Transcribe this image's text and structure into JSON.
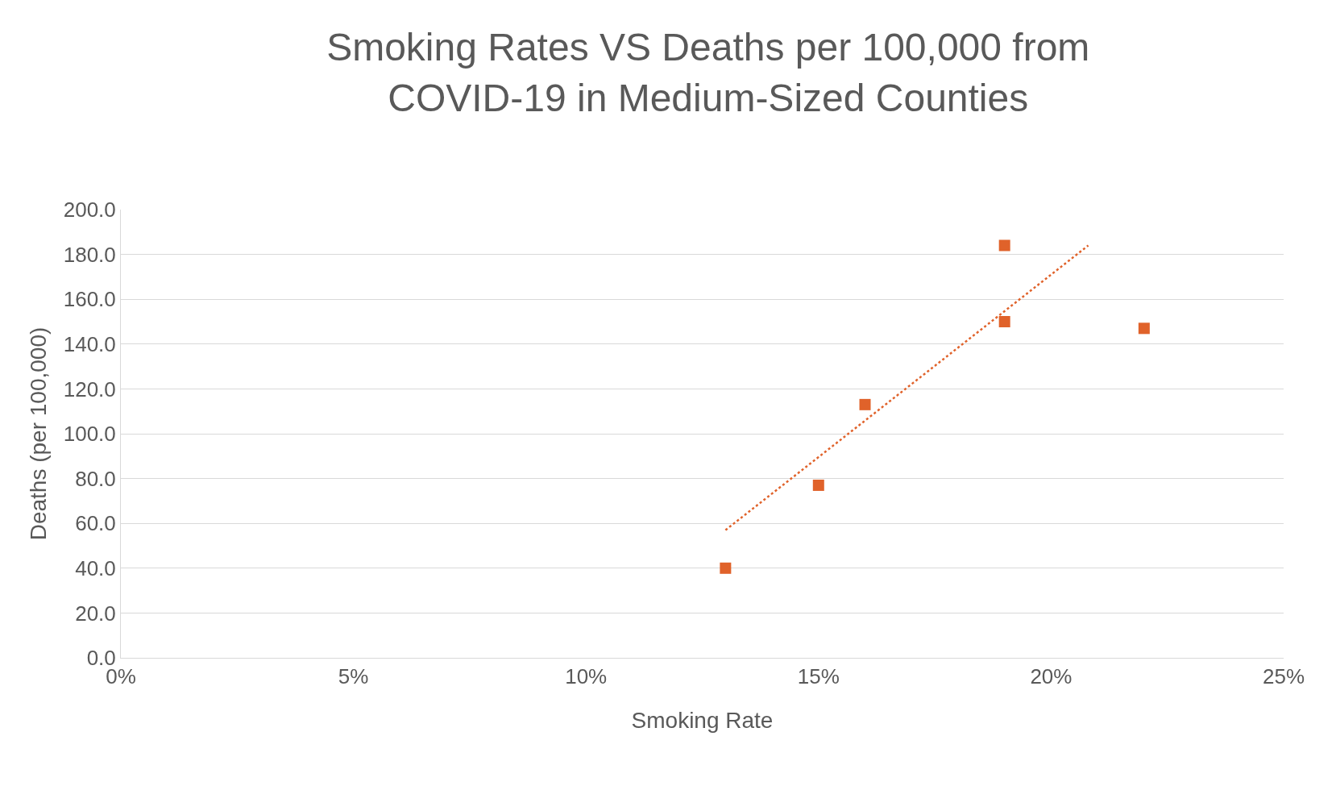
{
  "chart_data": {
    "type": "scatter",
    "title": "Smoking Rates VS Deaths per 100,000 from\nCOVID-19 in Medium-Sized Counties",
    "xlabel": "Smoking Rate",
    "ylabel": "Deaths (per 100,000)",
    "series": [
      {
        "color": "#e0622a",
        "marker": "square",
        "x": [
          13,
          15,
          16,
          19,
          19,
          22
        ],
        "values": [
          40,
          77,
          113,
          184,
          150,
          147
        ]
      },
      {
        "type": "line",
        "color": "#e0622a",
        "line_style": "dotted",
        "marker": "none",
        "x": [
          13,
          20.8
        ],
        "values": [
          57,
          184
        ]
      }
    ],
    "xlim": [
      0,
      25
    ],
    "xticks": [
      {
        "value": 0,
        "label": "0%"
      },
      {
        "value": 5,
        "label": "5%"
      },
      {
        "value": 10,
        "label": "10%"
      },
      {
        "value": 15,
        "label": "15%"
      },
      {
        "value": 20,
        "label": "20%"
      },
      {
        "value": 25,
        "label": "25%"
      }
    ],
    "ylim": [
      0,
      200
    ],
    "yticks": [
      {
        "value": 0,
        "label": "0.0"
      },
      {
        "value": 20,
        "label": "20.0"
      },
      {
        "value": 40,
        "label": "40.0"
      },
      {
        "value": 60,
        "label": "60.0"
      },
      {
        "value": 80,
        "label": "80.0"
      },
      {
        "value": 100,
        "label": "100.0"
      },
      {
        "value": 120,
        "label": "120.0"
      },
      {
        "value": 140,
        "label": "140.0"
      },
      {
        "value": 160,
        "label": "160.0"
      },
      {
        "value": 180,
        "label": "180.0"
      },
      {
        "value": 200,
        "label": "200.0"
      }
    ],
    "grid": "y"
  }
}
